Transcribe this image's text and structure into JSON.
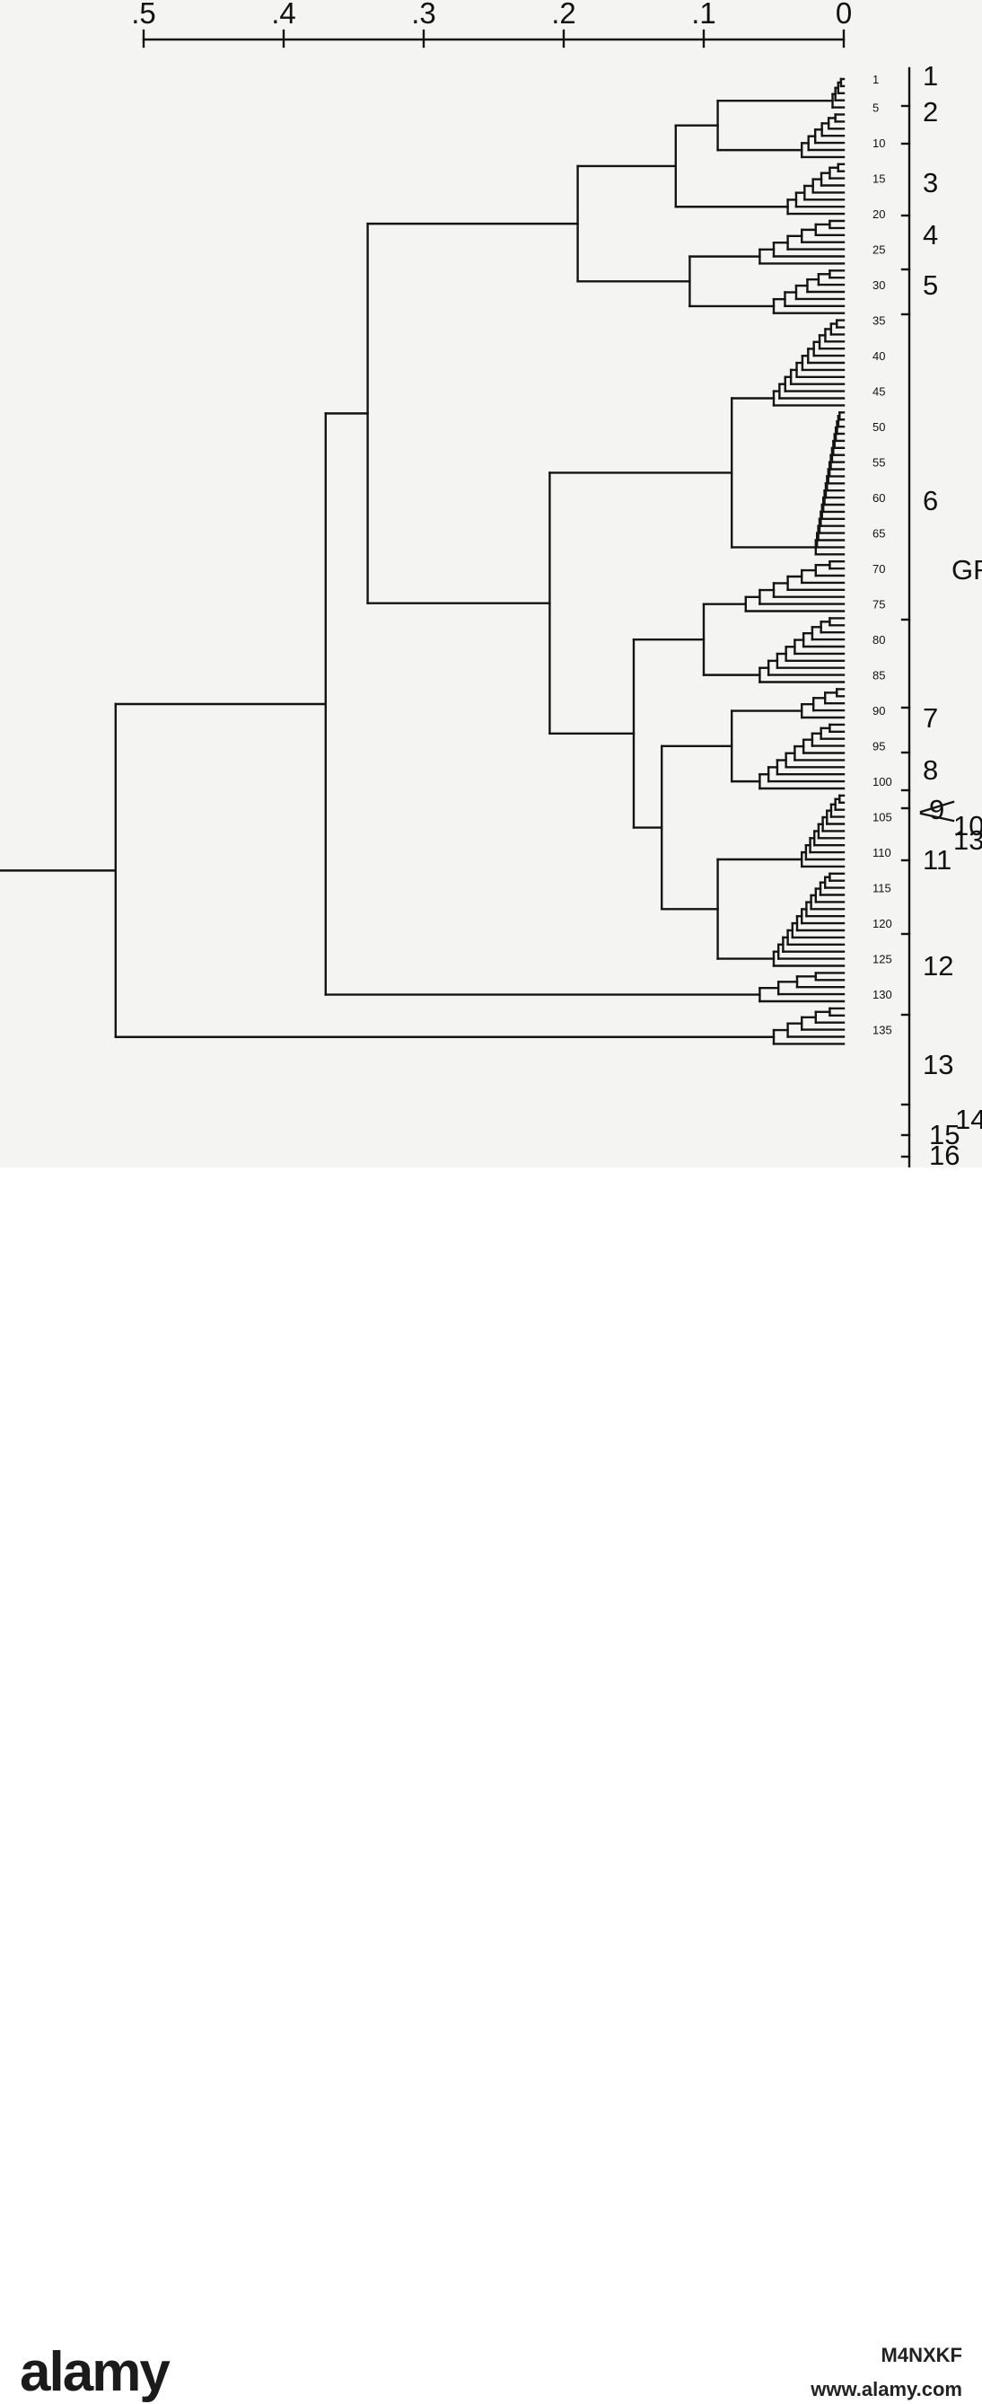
{
  "scale": {
    "labels": [
      ".5",
      ".4",
      ".3",
      ".2",
      ".1",
      "0"
    ],
    "values": [
      0.5,
      0.4,
      0.3,
      0.2,
      0.1,
      0
    ]
  },
  "leaf_ticks": [
    "1",
    "5",
    "10",
    "15",
    "20",
    "25",
    "30",
    "35",
    "40",
    "45",
    "50",
    "55",
    "60",
    "65",
    "70",
    "75",
    "80",
    "85",
    "90",
    "95",
    "100",
    "105",
    "110",
    "115",
    "120",
    "125",
    "130",
    "135"
  ],
  "groups": [
    "1",
    "2",
    "3",
    "4",
    "5",
    "6",
    "GR",
    "7",
    "8",
    "9",
    "10",
    "13",
    "11",
    "12",
    "13",
    "14",
    "15",
    "16"
  ],
  "watermark": {
    "logo": "alamy",
    "image_id": "M4NXKF",
    "url": "www.alamy.com"
  }
}
